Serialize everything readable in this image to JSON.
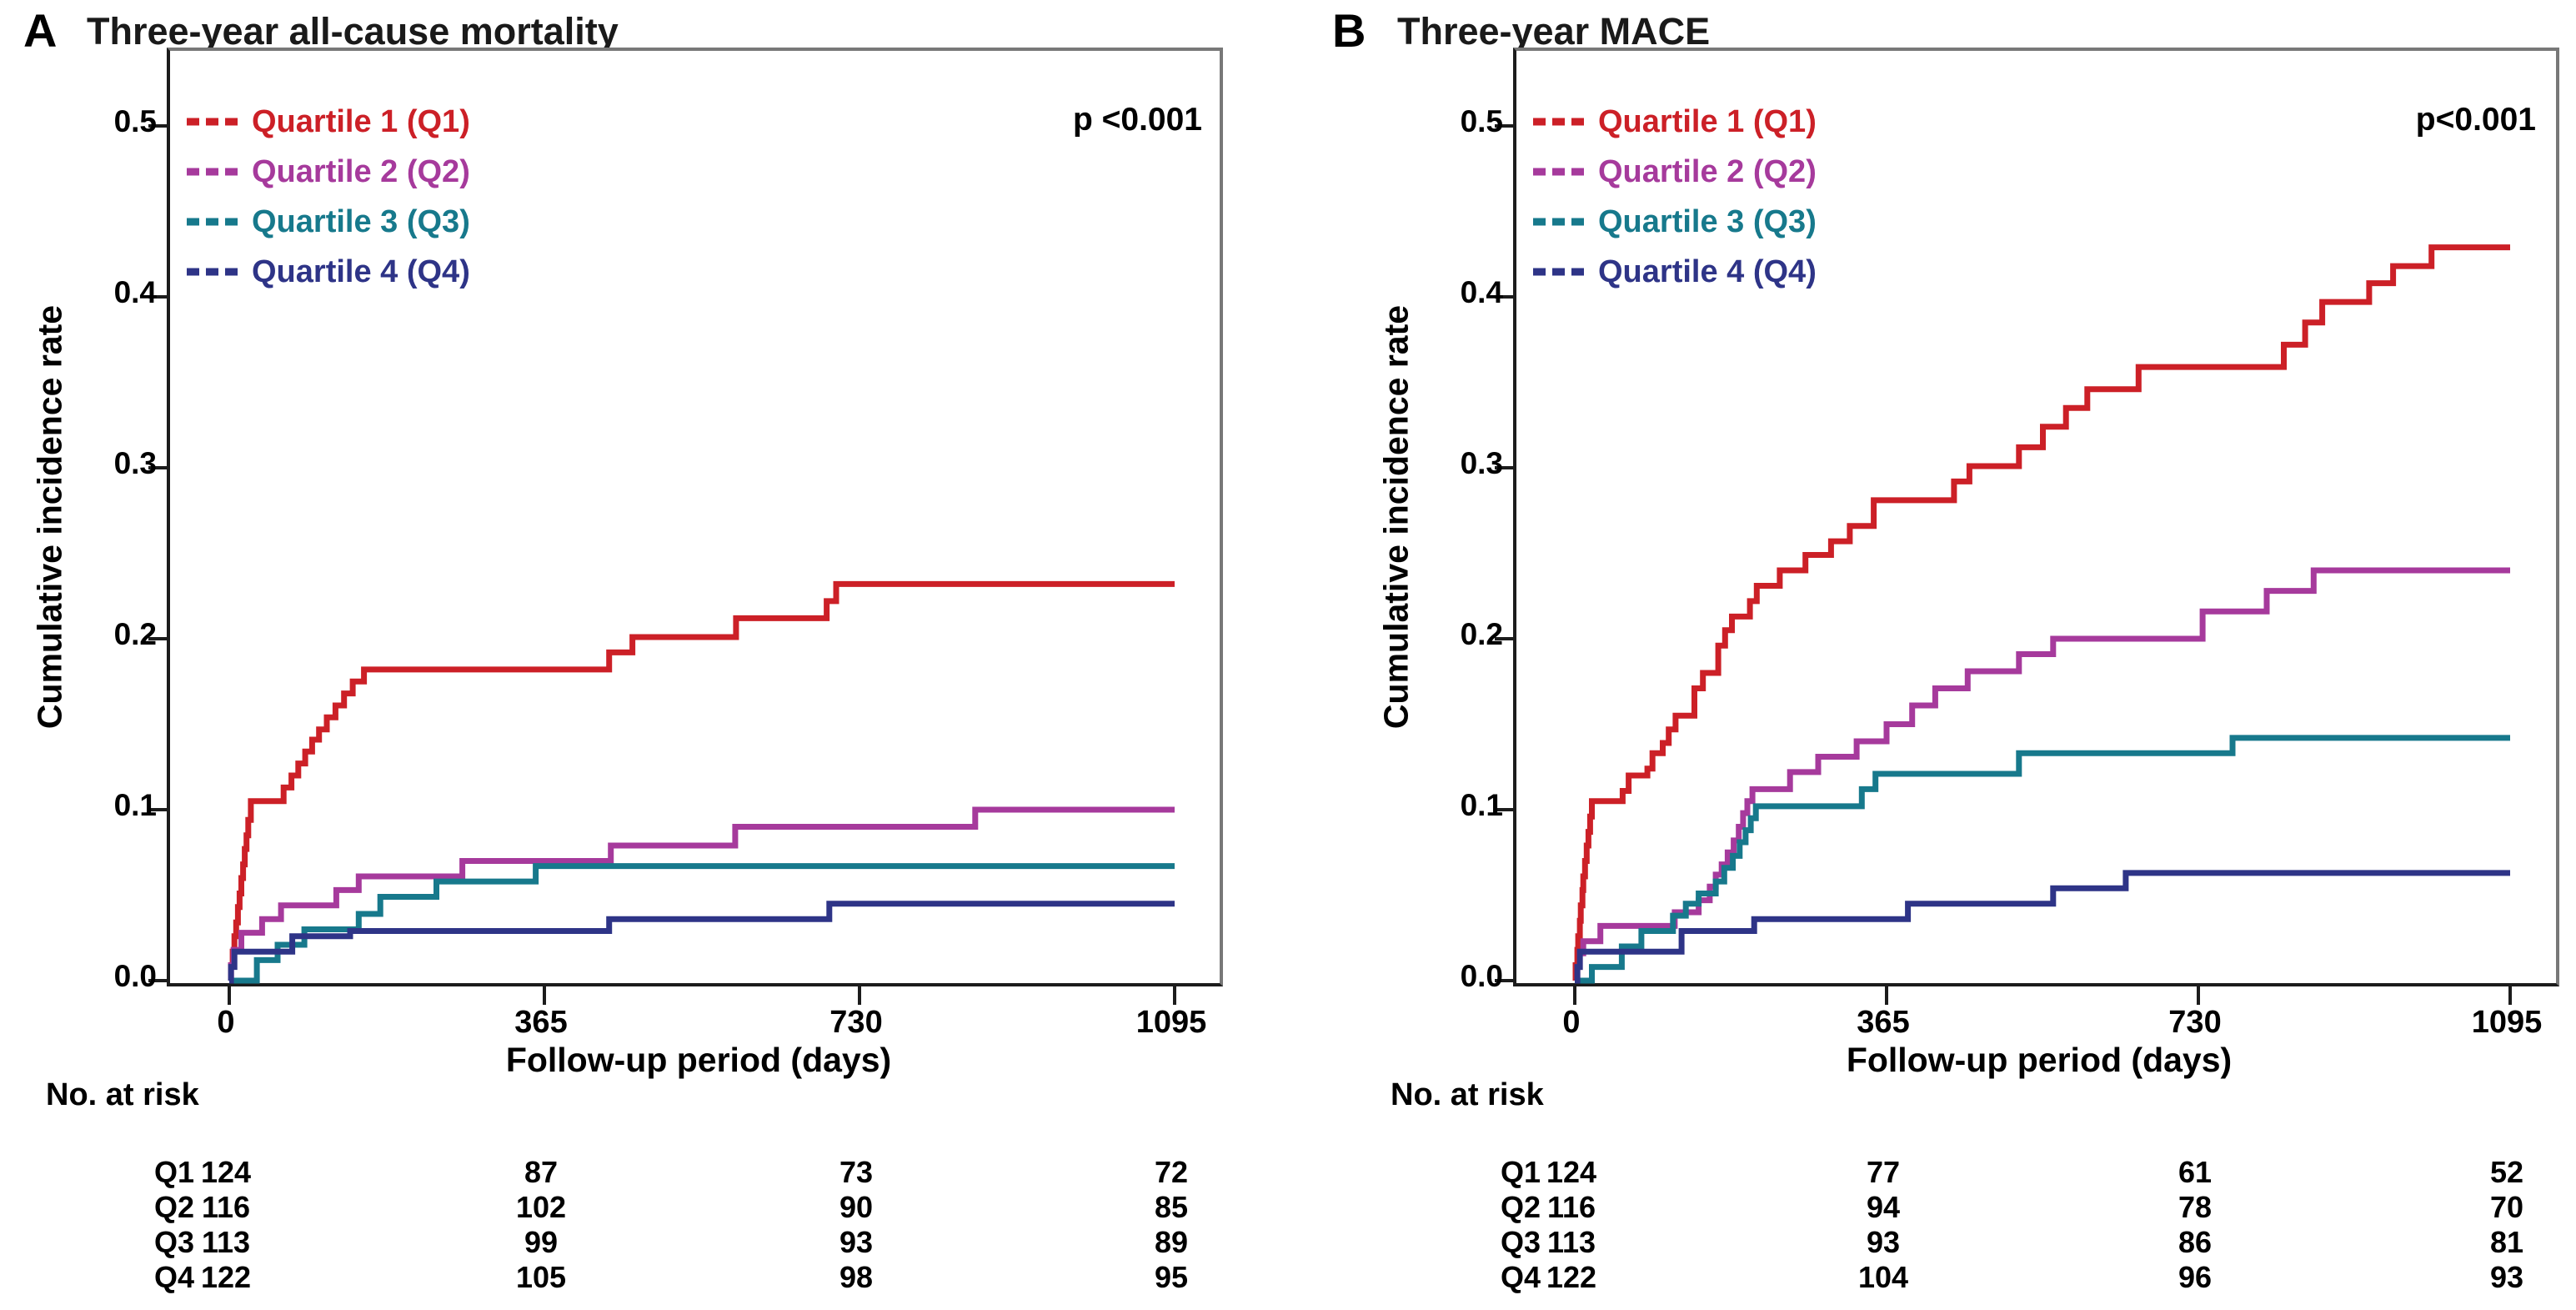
{
  "chart_data": [
    {
      "type": "line-step",
      "panel_letter": "A",
      "title": "Three-year all-cause mortality",
      "p_label": "p <0.001",
      "xlabel": "Follow-up period (days)",
      "ylabel": "Cumulative incidence rate",
      "x_ticks": [
        0,
        365,
        730,
        1095
      ],
      "y_ticks": [
        "0.0",
        "0.1",
        "0.2",
        "0.3",
        "0.4",
        "0.5"
      ],
      "xlim": [
        0,
        1095
      ],
      "ylim": [
        0,
        0.52
      ],
      "grid": false,
      "legend_position": "top-left",
      "series": [
        {
          "name": "Quartile 1 (Q1)",
          "color": "#cc2027",
          "points": [
            [
              0,
              0
            ],
            [
              2,
              0.009
            ],
            [
              4,
              0.017
            ],
            [
              6,
              0.026
            ],
            [
              8,
              0.034
            ],
            [
              10,
              0.043
            ],
            [
              12,
              0.051
            ],
            [
              14,
              0.06
            ],
            [
              16,
              0.068
            ],
            [
              18,
              0.077
            ],
            [
              20,
              0.085
            ],
            [
              22,
              0.094
            ],
            [
              25,
              0.105
            ],
            [
              63,
              0.113
            ],
            [
              72,
              0.12
            ],
            [
              80,
              0.127
            ],
            [
              88,
              0.134
            ],
            [
              96,
              0.141
            ],
            [
              104,
              0.147
            ],
            [
              113,
              0.154
            ],
            [
              123,
              0.161
            ],
            [
              133,
              0.168
            ],
            [
              143,
              0.175
            ],
            [
              156,
              0.182
            ],
            [
              440,
              0.192
            ],
            [
              467,
              0.201
            ],
            [
              587,
              0.212
            ],
            [
              692,
              0.222
            ],
            [
              703,
              0.232
            ]
          ]
        },
        {
          "name": "Quartile 2 (Q2)",
          "color": "#a63a9c",
          "points": [
            [
              0,
              0
            ],
            [
              2,
              0.009
            ],
            [
              5,
              0.018
            ],
            [
              14,
              0.028
            ],
            [
              38,
              0.036
            ],
            [
              60,
              0.044
            ],
            [
              124,
              0.053
            ],
            [
              150,
              0.061
            ],
            [
              270,
              0.07
            ],
            [
              442,
              0.079
            ],
            [
              586,
              0.09
            ],
            [
              864,
              0.1
            ]
          ]
        },
        {
          "name": "Quartile 3 (Q3)",
          "color": "#17798c",
          "points": [
            [
              0,
              0
            ],
            [
              32,
              0.012
            ],
            [
              56,
              0.021
            ],
            [
              87,
              0.03
            ],
            [
              150,
              0.039
            ],
            [
              175,
              0.049
            ],
            [
              240,
              0.058
            ],
            [
              355,
              0.067
            ]
          ]
        },
        {
          "name": "Quartile 4 (Q4)",
          "color": "#2e3487",
          "points": [
            [
              0,
              0
            ],
            [
              2,
              0.008
            ],
            [
              6,
              0.017
            ],
            [
              73,
              0.026
            ],
            [
              140,
              0.029
            ],
            [
              440,
              0.036
            ],
            [
              695,
              0.045
            ]
          ]
        }
      ],
      "risk_table": {
        "header": "No. at risk",
        "columns": [
          0,
          365,
          730,
          1095
        ],
        "rows": [
          {
            "label": "Q1",
            "values": [
              124,
              87,
              73,
              72
            ]
          },
          {
            "label": "Q2",
            "values": [
              116,
              102,
              90,
              85
            ]
          },
          {
            "label": "Q3",
            "values": [
              113,
              99,
              93,
              89
            ]
          },
          {
            "label": "Q4",
            "values": [
              122,
              105,
              98,
              95
            ]
          }
        ]
      }
    },
    {
      "type": "line-step",
      "panel_letter": "B",
      "title": "Three-year MACE",
      "p_label": "p<0.001",
      "xlabel": "Follow-up period (days)",
      "ylabel": "Cumulative incidence rate",
      "x_ticks": [
        0,
        365,
        730,
        1095
      ],
      "y_ticks": [
        "0.0",
        "0.1",
        "0.2",
        "0.3",
        "0.4",
        "0.5"
      ],
      "xlim": [
        0,
        1095
      ],
      "ylim": [
        0,
        0.52
      ],
      "grid": false,
      "legend_position": "top-left",
      "series": [
        {
          "name": "Quartile 1 (Q1)",
          "color": "#cc2027",
          "points": [
            [
              0,
              0
            ],
            [
              1,
              0.009
            ],
            [
              3,
              0.018
            ],
            [
              4,
              0.026
            ],
            [
              6,
              0.035
            ],
            [
              7,
              0.044
            ],
            [
              9,
              0.053
            ],
            [
              10,
              0.061
            ],
            [
              12,
              0.07
            ],
            [
              14,
              0.079
            ],
            [
              16,
              0.087
            ],
            [
              18,
              0.096
            ],
            [
              20,
              0.105
            ],
            [
              56,
              0.111
            ],
            [
              63,
              0.12
            ],
            [
              85,
              0.124
            ],
            [
              91,
              0.133
            ],
            [
              103,
              0.139
            ],
            [
              110,
              0.147
            ],
            [
              118,
              0.155
            ],
            [
              140,
              0.171
            ],
            [
              150,
              0.18
            ],
            [
              168,
              0.196
            ],
            [
              176,
              0.205
            ],
            [
              184,
              0.213
            ],
            [
              205,
              0.222
            ],
            [
              213,
              0.231
            ],
            [
              240,
              0.24
            ],
            [
              270,
              0.249
            ],
            [
              300,
              0.257
            ],
            [
              322,
              0.266
            ],
            [
              350,
              0.281
            ],
            [
              444,
              0.292
            ],
            [
              462,
              0.301
            ],
            [
              520,
              0.312
            ],
            [
              548,
              0.324
            ],
            [
              575,
              0.335
            ],
            [
              600,
              0.346
            ],
            [
              660,
              0.359
            ],
            [
              830,
              0.372
            ],
            [
              855,
              0.385
            ],
            [
              875,
              0.397
            ],
            [
              930,
              0.408
            ],
            [
              958,
              0.418
            ],
            [
              1003,
              0.429
            ]
          ]
        },
        {
          "name": "Quartile 2 (Q2)",
          "color": "#a63a9c",
          "points": [
            [
              0,
              0
            ],
            [
              3,
              0.008
            ],
            [
              6,
              0.016
            ],
            [
              10,
              0.023
            ],
            [
              30,
              0.032
            ],
            [
              117,
              0.04
            ],
            [
              145,
              0.047
            ],
            [
              158,
              0.055
            ],
            [
              165,
              0.062
            ],
            [
              172,
              0.068
            ],
            [
              179,
              0.075
            ],
            [
              186,
              0.082
            ],
            [
              192,
              0.09
            ],
            [
              197,
              0.098
            ],
            [
              202,
              0.105
            ],
            [
              208,
              0.112
            ],
            [
              252,
              0.122
            ],
            [
              285,
              0.131
            ],
            [
              330,
              0.14
            ],
            [
              365,
              0.15
            ],
            [
              395,
              0.161
            ],
            [
              422,
              0.171
            ],
            [
              460,
              0.181
            ],
            [
              520,
              0.191
            ],
            [
              560,
              0.2
            ],
            [
              735,
              0.216
            ],
            [
              810,
              0.228
            ],
            [
              865,
              0.24
            ]
          ]
        },
        {
          "name": "Quartile 3 (Q3)",
          "color": "#17798c",
          "points": [
            [
              0,
              0
            ],
            [
              20,
              0.008
            ],
            [
              55,
              0.02
            ],
            [
              78,
              0.029
            ],
            [
              115,
              0.038
            ],
            [
              130,
              0.045
            ],
            [
              145,
              0.051
            ],
            [
              165,
              0.058
            ],
            [
              175,
              0.066
            ],
            [
              185,
              0.073
            ],
            [
              193,
              0.081
            ],
            [
              200,
              0.088
            ],
            [
              206,
              0.095
            ],
            [
              212,
              0.102
            ],
            [
              336,
              0.112
            ],
            [
              352,
              0.121
            ],
            [
              520,
              0.133
            ],
            [
              770,
              0.142
            ]
          ]
        },
        {
          "name": "Quartile 4 (Q4)",
          "color": "#2e3487",
          "points": [
            [
              0,
              0
            ],
            [
              3,
              0.008
            ],
            [
              6,
              0.017
            ],
            [
              125,
              0.029
            ],
            [
              210,
              0.036
            ],
            [
              390,
              0.045
            ],
            [
              560,
              0.054
            ],
            [
              645,
              0.063
            ]
          ]
        }
      ],
      "risk_table": {
        "header": "No. at risk",
        "columns": [
          0,
          365,
          730,
          1095
        ],
        "rows": [
          {
            "label": "Q1",
            "values": [
              124,
              77,
              61,
              52
            ]
          },
          {
            "label": "Q2",
            "values": [
              116,
              94,
              78,
              70
            ]
          },
          {
            "label": "Q3",
            "values": [
              113,
              93,
              86,
              81
            ]
          },
          {
            "label": "Q4",
            "values": [
              122,
              104,
              96,
              93
            ]
          }
        ]
      }
    }
  ]
}
